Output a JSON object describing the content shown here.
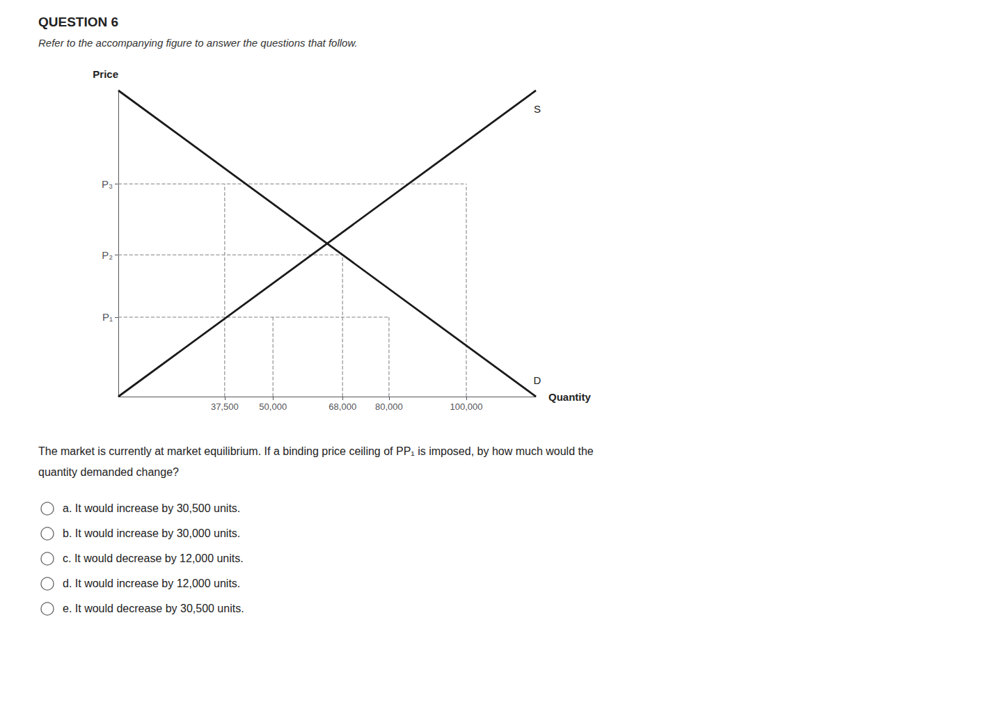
{
  "chart_data": {
    "type": "line",
    "title": "QUESTION 6",
    "subtitle": "Refer to the accompanying figure to answer the questions that follow.",
    "x_label": "Quantity",
    "y_label": "Price",
    "xlim": [
      10000,
      118000
    ],
    "ylim": [
      0.0,
      1.08
    ],
    "xticks": [
      {
        "value": 37500,
        "label": "37,500"
      },
      {
        "value": 50000,
        "label": "50,000"
      },
      {
        "value": 68000,
        "label": "68,000"
      },
      {
        "value": 80000,
        "label": "80,000"
      },
      {
        "value": 100000,
        "label": "100,000"
      }
    ],
    "yticks": [
      {
        "value": 0.75,
        "label": "P₃"
      },
      {
        "value": 0.5,
        "label": "P₂"
      },
      {
        "value": 0.28,
        "label": "P₁"
      }
    ],
    "grid": false,
    "series": [
      {
        "name": "S",
        "color": "#1a1a1a",
        "line_style": "solid",
        "x": [
          10000,
          118000
        ],
        "values": [
          0.0,
          1.08
        ]
      },
      {
        "name": "D",
        "color": "#1a1a1a",
        "line_style": "solid",
        "x": [
          10000,
          118000
        ],
        "values": [
          1.08,
          0.0
        ]
      },
      {
        "color": "#999999",
        "line_style": "dashed",
        "x": [
          10000,
          100000
        ],
        "values": [
          0.75,
          0.75
        ]
      },
      {
        "color": "#999999",
        "line_style": "dashed",
        "x": [
          10000,
          68000
        ],
        "values": [
          0.5,
          0.5
        ]
      },
      {
        "color": "#999999",
        "line_style": "dashed",
        "x": [
          10000,
          80000
        ],
        "values": [
          0.28,
          0.28
        ]
      },
      {
        "color": "#999999",
        "line_style": "dashed",
        "x": [
          37500,
          37500
        ],
        "values": [
          0.0,
          0.75
        ]
      },
      {
        "color": "#999999",
        "line_style": "dashed",
        "x": [
          50000,
          50000
        ],
        "values": [
          0.0,
          0.28
        ]
      },
      {
        "color": "#999999",
        "line_style": "dashed",
        "x": [
          68000,
          68000
        ],
        "values": [
          0.0,
          0.5
        ]
      },
      {
        "color": "#999999",
        "line_style": "dashed",
        "x": [
          80000,
          80000
        ],
        "values": [
          0.0,
          0.28
        ]
      },
      {
        "color": "#999999",
        "line_style": "dashed",
        "x": [
          100000,
          100000
        ],
        "values": [
          0.0,
          0.75
        ]
      }
    ],
    "question": [
      "The market is currently at market equilibrium. If a binding price ceiling of P",
      "P₁",
      " is imposed, by how much would the",
      "quantity demanded change?"
    ],
    "choices": [
      "a. It would increase by 30,500 units.",
      "b. It would increase by 30,000 units.",
      "c. It would decrease by 12,000 units.",
      "d. It would increase by 12,000 units.",
      "e. It would decrease by 30,500 units."
    ]
  }
}
